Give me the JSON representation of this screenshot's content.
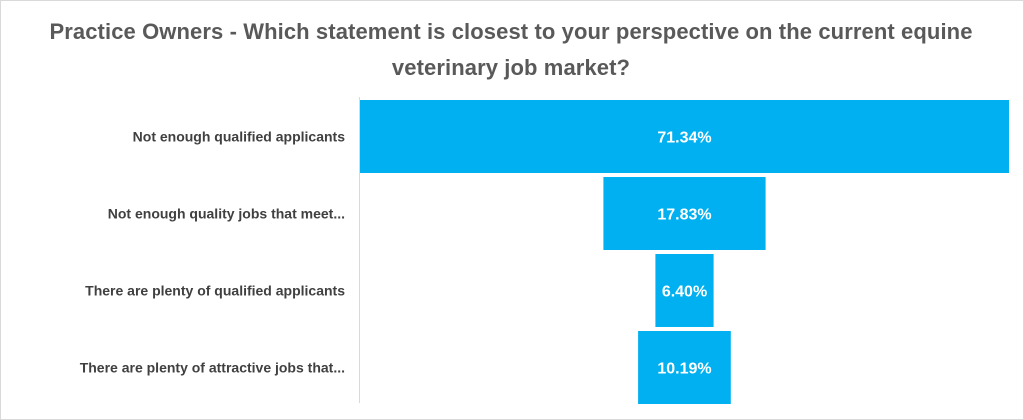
{
  "title": "Practice Owners - Which statement is closest to your perspective on the current equine veterinary job market?",
  "colors": {
    "bar": "#00b0f0",
    "axis": "#d9d9d9",
    "label": "#404040",
    "value_label": "#ffffff"
  },
  "chart_data": {
    "type": "bar",
    "orientation": "horizontal",
    "style": "funnel",
    "title": "Practice Owners - Which statement is closest to your perspective on the current equine veterinary job market?",
    "categories": [
      "Not enough qualified applicants",
      "Not enough quality jobs that meet...",
      "There are plenty of qualified applicants",
      "There are plenty of attractive jobs that..."
    ],
    "values": [
      71.34,
      17.83,
      6.4,
      10.19
    ],
    "value_labels": [
      "71.34%",
      "17.83%",
      "6.40%",
      "10.19%"
    ],
    "unit": "%",
    "grid": false,
    "legend": "none"
  }
}
